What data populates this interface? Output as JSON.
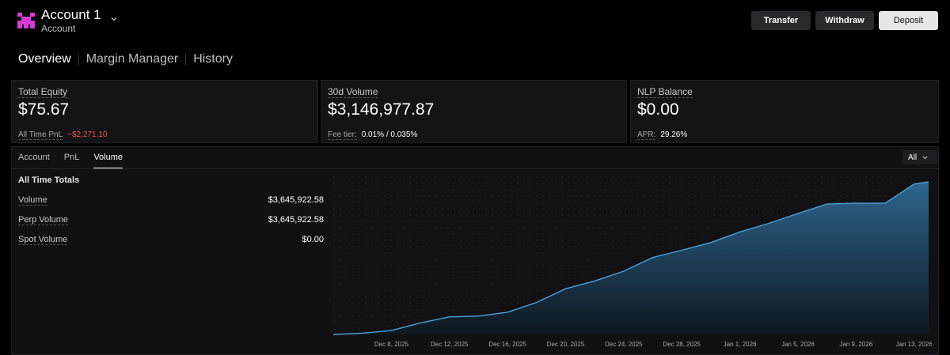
{
  "header": {
    "account_name": "Account 1",
    "account_sub": "Account",
    "buttons": {
      "transfer": "Transfer",
      "withdraw": "Withdraw",
      "deposit": "Deposit"
    },
    "logo_color": "#d63ad6"
  },
  "nav": {
    "tabs": [
      {
        "label": "Overview",
        "active": true
      },
      {
        "label": "Margin Manager",
        "active": false
      },
      {
        "label": "History",
        "active": false
      }
    ]
  },
  "cards": {
    "equity": {
      "label": "Total Equity",
      "value": "$75.67",
      "foot_label": "All Time PnL",
      "foot_value": "−$2,271.10"
    },
    "volume": {
      "label": "30d Volume",
      "value": "$3,146,977.87",
      "foot_label": "Fee tier:",
      "foot_value": "0.01% / 0.035%"
    },
    "nlp": {
      "label": "NLP Balance",
      "value": "$0.00",
      "foot_label": "APR:",
      "foot_value": "29.26%"
    }
  },
  "panel": {
    "tabs": [
      {
        "label": "Account",
        "active": false
      },
      {
        "label": "PnL",
        "active": false
      },
      {
        "label": "Volume",
        "active": true
      }
    ],
    "range": "All",
    "totals_title": "All Time Totals",
    "totals": [
      {
        "label": "Volume",
        "value": "$3,645,922.58"
      },
      {
        "label": "Perp Volume",
        "value": "$3,645,922.58"
      },
      {
        "label": "Spot Volume",
        "value": "$0.00"
      }
    ]
  },
  "chart_data": {
    "type": "area",
    "title": "",
    "xlabel": "",
    "ylabel": "",
    "line_color": "#4d9fd8",
    "x_ticks": [
      "Dec 8, 2025",
      "Dec 12, 2025",
      "Dec 16, 2025",
      "Dec 20, 2025",
      "Dec 24, 2025",
      "Dec 28, 2025",
      "Jan 1, 2026",
      "Jan 5, 2026",
      "Jan 9, 2026",
      "Jan 13, 2026"
    ],
    "x": [
      "Dec 4, 2025",
      "Dec 6, 2025",
      "Dec 8, 2025",
      "Dec 10, 2025",
      "Dec 12, 2025",
      "Dec 14, 2025",
      "Dec 16, 2025",
      "Dec 18, 2025",
      "Dec 20, 2025",
      "Dec 22, 2025",
      "Dec 24, 2025",
      "Dec 26, 2025",
      "Dec 28, 2025",
      "Dec 30, 2025",
      "Jan 1, 2026",
      "Jan 3, 2026",
      "Jan 5, 2026",
      "Jan 7, 2026",
      "Jan 9, 2026",
      "Jan 11, 2026",
      "Jan 13, 2026",
      "Jan 14, 2026"
    ],
    "values": [
      0,
      30000,
      90000,
      270000,
      410000,
      430000,
      520000,
      750000,
      1070000,
      1250000,
      1480000,
      1800000,
      1970000,
      2150000,
      2400000,
      2600000,
      2830000,
      3050000,
      3070000,
      3070000,
      3520000,
      3570000
    ],
    "ylim": [
      0,
      3700000
    ],
    "grid": "dotted background"
  }
}
